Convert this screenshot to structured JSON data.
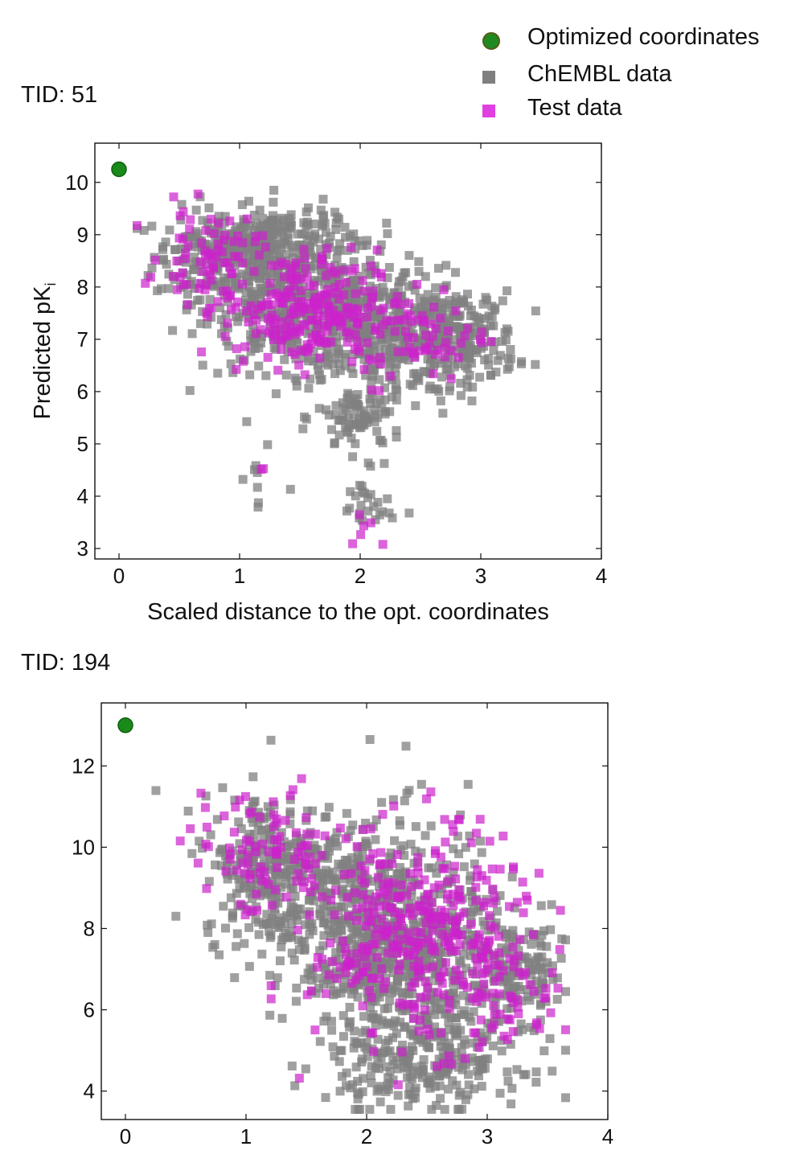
{
  "legend": {
    "items": [
      {
        "label": "Optimized coordinates",
        "marker": "circle",
        "color": "#1a8a1a"
      },
      {
        "label": "ChEMBL data",
        "marker": "square",
        "color": "#808080"
      },
      {
        "label": "Test data",
        "marker": "square",
        "color": "#dd33dd"
      }
    ]
  },
  "chart_data": [
    {
      "type": "scatter",
      "title": "TID: 51",
      "xlabel": "Scaled distance to the opt. coordinates",
      "ylabel": "Predicted pK",
      "ylabel_sub": "i",
      "xlim": [
        -0.2,
        4.0
      ],
      "ylim": [
        2.8,
        10.75
      ],
      "xticks": [
        0,
        1,
        2,
        3,
        4
      ],
      "yticks": [
        3,
        4,
        5,
        6,
        7,
        8,
        9,
        10
      ],
      "optimized": {
        "x": 0.0,
        "y": 10.25
      },
      "series": [
        {
          "name": "ChEMBL data",
          "color": "#808080",
          "clusters": [
            {
              "cx": 0.85,
              "cy": 8.6,
              "sx": 0.28,
              "sy": 0.45,
              "n": 200
            },
            {
              "cx": 1.45,
              "cy": 7.8,
              "sx": 0.38,
              "sy": 0.7,
              "n": 380
            },
            {
              "cx": 2.15,
              "cy": 7.2,
              "sx": 0.4,
              "sy": 0.6,
              "n": 330
            },
            {
              "cx": 2.8,
              "cy": 7.0,
              "sx": 0.25,
              "sy": 0.45,
              "n": 200
            },
            {
              "cx": 1.35,
              "cy": 8.9,
              "sx": 0.3,
              "sy": 0.3,
              "n": 120
            },
            {
              "cx": 2.0,
              "cy": 5.5,
              "sx": 0.18,
              "sy": 0.35,
              "n": 90
            },
            {
              "cx": 2.05,
              "cy": 3.8,
              "sx": 0.12,
              "sy": 0.3,
              "n": 25
            },
            {
              "cx": 1.15,
              "cy": 4.2,
              "sx": 0.12,
              "sy": 0.35,
              "n": 8
            }
          ]
        },
        {
          "name": "Test data",
          "color": "#cc22cc",
          "clusters": [
            {
              "cx": 0.75,
              "cy": 8.6,
              "sx": 0.2,
              "sy": 0.45,
              "n": 70
            },
            {
              "cx": 1.5,
              "cy": 7.6,
              "sx": 0.32,
              "sy": 0.55,
              "n": 210
            },
            {
              "cx": 2.3,
              "cy": 7.1,
              "sx": 0.4,
              "sy": 0.45,
              "n": 90
            },
            {
              "cx": 2.05,
              "cy": 3.6,
              "sx": 0.1,
              "sy": 0.3,
              "n": 6
            },
            {
              "cx": 1.15,
              "cy": 4.55,
              "sx": 0.05,
              "sy": 0.05,
              "n": 2
            }
          ]
        }
      ]
    },
    {
      "type": "scatter",
      "title": "TID: 194",
      "xlabel": "",
      "ylabel": "",
      "xlim": [
        -0.2,
        4.0
      ],
      "ylim": [
        3.3,
        13.55
      ],
      "xticks": [
        0,
        1,
        2,
        3,
        4
      ],
      "yticks": [
        4,
        6,
        8,
        10,
        12
      ],
      "optimized": {
        "x": 0.0,
        "y": 13.0
      },
      "series": [
        {
          "name": "ChEMBL data",
          "color": "#808080",
          "clusters": [
            {
              "cx": 1.2,
              "cy": 9.5,
              "sx": 0.28,
              "sy": 0.9,
              "n": 260
            },
            {
              "cx": 1.9,
              "cy": 8.0,
              "sx": 0.35,
              "sy": 1.3,
              "n": 420
            },
            {
              "cx": 2.5,
              "cy": 7.2,
              "sx": 0.42,
              "sy": 1.6,
              "n": 520
            },
            {
              "cx": 2.5,
              "cy": 4.7,
              "sx": 0.4,
              "sy": 0.5,
              "n": 180
            },
            {
              "cx": 3.3,
              "cy": 6.9,
              "sx": 0.18,
              "sy": 0.6,
              "n": 90
            }
          ]
        },
        {
          "name": "Test data",
          "color": "#cc22cc",
          "clusters": [
            {
              "cx": 1.15,
              "cy": 9.8,
              "sx": 0.3,
              "sy": 0.8,
              "n": 90
            },
            {
              "cx": 2.45,
              "cy": 7.8,
              "sx": 0.45,
              "sy": 1.3,
              "n": 360
            },
            {
              "cx": 3.2,
              "cy": 6.5,
              "sx": 0.2,
              "sy": 0.7,
              "n": 40
            }
          ]
        }
      ]
    }
  ]
}
